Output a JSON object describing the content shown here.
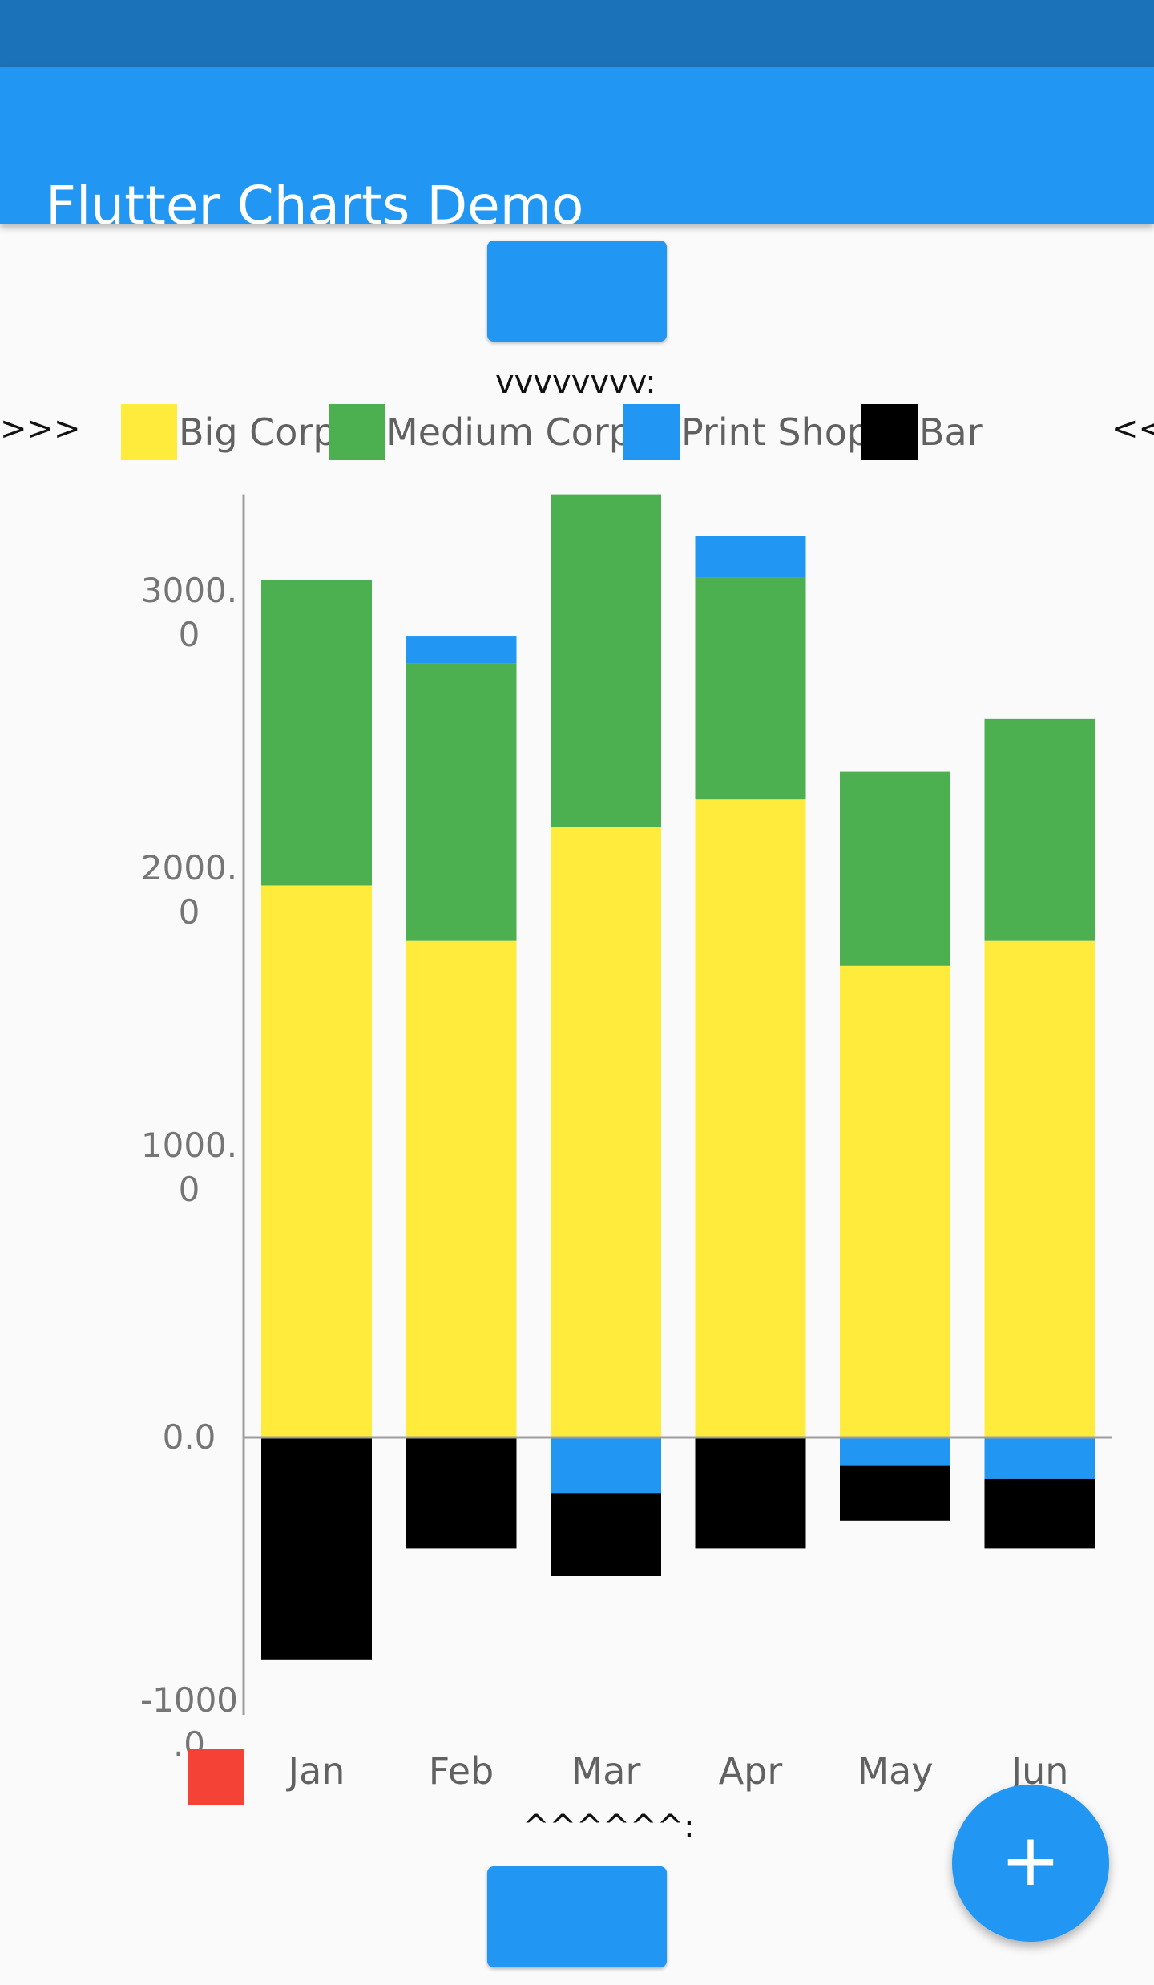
{
  "app": {
    "title": "Flutter Charts Demo"
  },
  "colors": {
    "status_bar": "#1c72b8",
    "app_bar": "#2196f3",
    "button": "#2196f3",
    "fab": "#2196f3",
    "axis": "#9e9e9e",
    "unnamed_legend_swatch": "#f44336"
  },
  "markers": {
    "top": "vvvvvvvv:",
    "bottom": "^^^^^^:",
    "legend_left": ">>>",
    "legend_right": "<<"
  },
  "fab": {
    "icon": "plus-icon",
    "symbol": "+"
  },
  "chart_data": {
    "type": "bar",
    "stacked": true,
    "categories": [
      "Jan",
      "Feb",
      "Mar",
      "Apr",
      "May",
      "Jun"
    ],
    "ylim": [
      -1000,
      3400
    ],
    "y_ticks": [
      3000,
      2000,
      1000,
      0,
      -1000
    ],
    "y_tick_labels": [
      "3000.\n0",
      "2000.\n0",
      "1000.\n0",
      "0.0",
      "-1000\n.0"
    ],
    "grid": false,
    "legend_position": "top",
    "series": [
      {
        "name": "Big Corp",
        "color": "#ffeb3b",
        "values": [
          1990,
          1790,
          2200,
          2300,
          1700,
          1790
        ]
      },
      {
        "name": "Medium Corp",
        "color": "#4caf50",
        "values": [
          1100,
          1000,
          1200,
          800,
          700,
          800
        ]
      },
      {
        "name": "Print Shop",
        "color": "#2196f3",
        "values": [
          0,
          100,
          -200,
          150,
          -100,
          -150
        ]
      },
      {
        "name": "Bar",
        "color": "#000000",
        "values": [
          -800,
          -400,
          -300,
          -400,
          -200,
          -250
        ]
      }
    ]
  }
}
